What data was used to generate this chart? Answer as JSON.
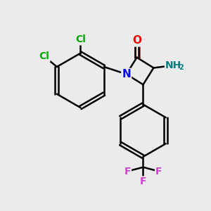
{
  "background_color": "#ebebeb",
  "bond_color": "#000000",
  "atom_colors": {
    "O": "#ff0000",
    "N_ring": "#0000ff",
    "N_amino": "#008080",
    "Cl": "#00aa00",
    "F": "#cc44cc",
    "C": "#000000",
    "H": "#888888"
  },
  "title": "",
  "figsize": [
    3.0,
    3.0
  ],
  "dpi": 100
}
